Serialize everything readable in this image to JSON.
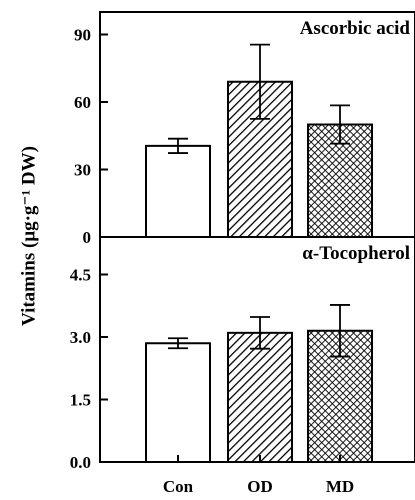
{
  "chart_data": {
    "type": "bar",
    "ylabel": "Vitamins (μg·g⁻¹ DW)",
    "categories": [
      "Con",
      "OD",
      "MD"
    ],
    "fills": [
      "white",
      "hatch",
      "crosshatch"
    ],
    "panels": [
      {
        "title": "Ascorbic acid",
        "ylim": [
          0,
          100
        ],
        "yticks": [
          0,
          30,
          60,
          90
        ],
        "ytick_labels": [
          "0",
          "30",
          "60",
          "90"
        ],
        "values": [
          40.5,
          69,
          50
        ],
        "errors": [
          3.2,
          16.5,
          8.5
        ]
      },
      {
        "title": "α-Tocopherol",
        "ylim": [
          0,
          5.4
        ],
        "yticks": [
          0.0,
          1.5,
          3.0,
          4.5
        ],
        "ytick_labels": [
          "0.0",
          "1.5",
          "3.0",
          "4.5"
        ],
        "values": [
          2.85,
          3.1,
          3.15
        ],
        "errors": [
          0.12,
          0.38,
          0.62
        ]
      }
    ]
  }
}
